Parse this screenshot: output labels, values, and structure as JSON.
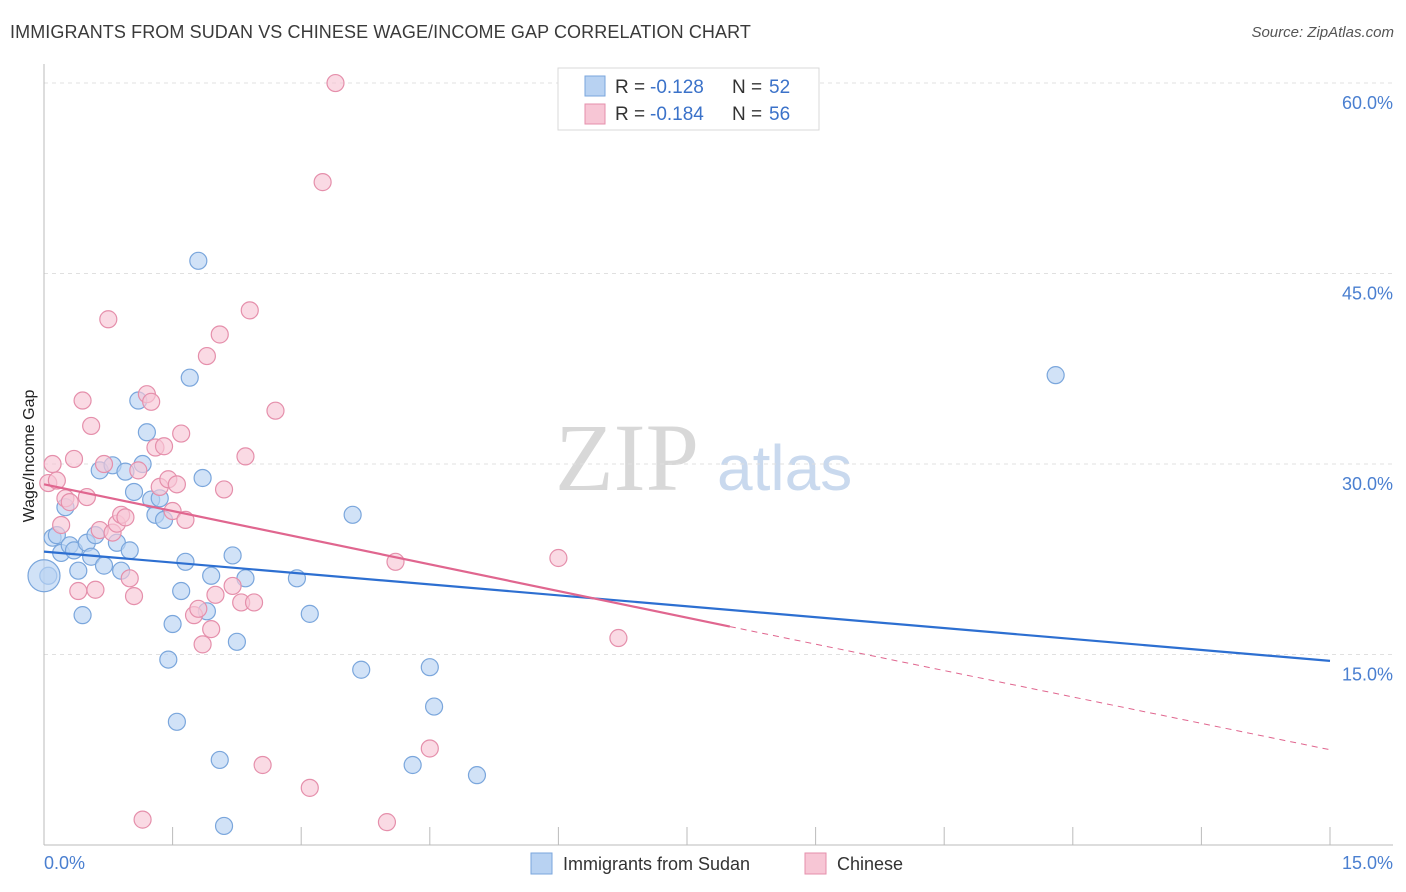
{
  "title": "IMMIGRANTS FROM SUDAN VS CHINESE WAGE/INCOME GAP CORRELATION CHART",
  "source": "Source: ZipAtlas.com",
  "watermark": {
    "zip": "ZIP",
    "atlas": "atlas"
  },
  "colors": {
    "blue_fill": "#b8d2f2",
    "blue_stroke": "#7aa6dc",
    "blue_line": "#2d6fd1",
    "pink_fill": "#f7c6d5",
    "pink_stroke": "#e58fab",
    "pink_line": "#e0668f",
    "grid": "#e0e0e0",
    "tick_label": "#4a7fd0"
  },
  "stats": [
    {
      "r_label": "R =",
      "r_value": "-0.128",
      "n_label": "N =",
      "n_value": "52"
    },
    {
      "r_label": "R =",
      "r_value": "-0.184",
      "n_label": "N =",
      "n_value": "56"
    }
  ],
  "chart_data": {
    "type": "scatter",
    "title": "IMMIGRANTS FROM SUDAN VS CHINESE WAGE/INCOME GAP CORRELATION CHART",
    "xlabel": "",
    "ylabel": "Wage/Income Gap",
    "xlim": [
      0,
      15
    ],
    "ylim": [
      0,
      61.5
    ],
    "x_tick_labels": [
      "0.0%",
      "15.0%"
    ],
    "y_ticks": [
      15,
      30,
      45,
      60
    ],
    "y_tick_labels": [
      "15.0%",
      "30.0%",
      "45.0%",
      "60.0%"
    ],
    "grid": true,
    "legend_position": "bottom-center",
    "series": [
      {
        "name": "Immigrants from Sudan",
        "r": -0.128,
        "n": 52,
        "trend": {
          "x0": 0,
          "y0": 23.1,
          "x1": 15,
          "y1": 14.5
        },
        "points": [
          [
            0.05,
            21.2
          ],
          [
            0.1,
            24.2
          ],
          [
            0.15,
            24.4
          ],
          [
            0.2,
            23.0
          ],
          [
            0.25,
            26.6
          ],
          [
            0.3,
            23.6
          ],
          [
            0.35,
            23.2
          ],
          [
            0.4,
            21.6
          ],
          [
            0.45,
            18.1
          ],
          [
            0.5,
            23.8
          ],
          [
            0.55,
            22.7
          ],
          [
            0.6,
            24.4
          ],
          [
            0.65,
            29.5
          ],
          [
            0.7,
            22.0
          ],
          [
            0.8,
            29.9
          ],
          [
            0.85,
            23.8
          ],
          [
            0.9,
            21.6
          ],
          [
            0.95,
            29.4
          ],
          [
            1.0,
            23.2
          ],
          [
            1.05,
            27.8
          ],
          [
            1.1,
            35.0
          ],
          [
            1.15,
            30.0
          ],
          [
            1.2,
            32.5
          ],
          [
            1.25,
            27.2
          ],
          [
            1.3,
            26.0
          ],
          [
            1.35,
            27.3
          ],
          [
            1.4,
            25.6
          ],
          [
            1.45,
            14.6
          ],
          [
            1.5,
            17.4
          ],
          [
            1.55,
            9.7
          ],
          [
            1.6,
            20.0
          ],
          [
            1.65,
            22.3
          ],
          [
            1.7,
            36.8
          ],
          [
            1.8,
            46.0
          ],
          [
            1.85,
            28.9
          ],
          [
            1.9,
            18.4
          ],
          [
            1.95,
            21.2
          ],
          [
            2.05,
            6.7
          ],
          [
            2.1,
            1.5
          ],
          [
            2.2,
            22.8
          ],
          [
            2.25,
            16.0
          ],
          [
            2.35,
            21.0
          ],
          [
            2.95,
            21.0
          ],
          [
            3.1,
            18.2
          ],
          [
            3.6,
            26.0
          ],
          [
            3.7,
            13.8
          ],
          [
            4.3,
            6.3
          ],
          [
            4.5,
            14.0
          ],
          [
            4.55,
            10.9
          ],
          [
            5.05,
            5.5
          ],
          [
            11.8,
            37.0
          ],
          [
            0.0,
            21.2
          ]
        ]
      },
      {
        "name": "Chinese",
        "r": -0.184,
        "n": 56,
        "trend": {
          "x0": 0,
          "y0": 28.4,
          "x1": 8.0,
          "y1": 17.2,
          "dash_x1": 15,
          "dash_y1": 7.5
        },
        "points": [
          [
            0.05,
            28.5
          ],
          [
            0.1,
            30.0
          ],
          [
            0.15,
            28.7
          ],
          [
            0.2,
            25.2
          ],
          [
            0.25,
            27.3
          ],
          [
            0.3,
            27.0
          ],
          [
            0.35,
            30.4
          ],
          [
            0.4,
            20.0
          ],
          [
            0.45,
            35.0
          ],
          [
            0.5,
            27.4
          ],
          [
            0.55,
            33.0
          ],
          [
            0.6,
            20.1
          ],
          [
            0.65,
            24.8
          ],
          [
            0.7,
            30.0
          ],
          [
            0.75,
            41.4
          ],
          [
            0.8,
            24.6
          ],
          [
            0.85,
            25.3
          ],
          [
            0.9,
            26.0
          ],
          [
            0.95,
            25.8
          ],
          [
            1.0,
            21.0
          ],
          [
            1.05,
            19.6
          ],
          [
            1.1,
            29.5
          ],
          [
            1.15,
            2.0
          ],
          [
            1.2,
            35.5
          ],
          [
            1.25,
            34.9
          ],
          [
            1.3,
            31.3
          ],
          [
            1.35,
            28.2
          ],
          [
            1.4,
            31.4
          ],
          [
            1.45,
            28.8
          ],
          [
            1.5,
            26.3
          ],
          [
            1.55,
            28.4
          ],
          [
            1.6,
            32.4
          ],
          [
            1.65,
            25.6
          ],
          [
            1.75,
            18.1
          ],
          [
            1.8,
            18.6
          ],
          [
            1.85,
            15.8
          ],
          [
            1.9,
            38.5
          ],
          [
            1.95,
            17.0
          ],
          [
            2.0,
            19.7
          ],
          [
            2.05,
            40.2
          ],
          [
            2.1,
            28.0
          ],
          [
            2.2,
            20.4
          ],
          [
            2.3,
            19.1
          ],
          [
            2.35,
            30.6
          ],
          [
            2.4,
            42.1
          ],
          [
            2.45,
            19.1
          ],
          [
            2.55,
            6.3
          ],
          [
            2.7,
            34.2
          ],
          [
            3.1,
            4.5
          ],
          [
            3.25,
            52.2
          ],
          [
            3.4,
            60.0
          ],
          [
            4.0,
            1.8
          ],
          [
            4.1,
            22.3
          ],
          [
            4.5,
            7.6
          ],
          [
            6.0,
            22.6
          ],
          [
            6.7,
            16.3
          ]
        ]
      }
    ]
  }
}
